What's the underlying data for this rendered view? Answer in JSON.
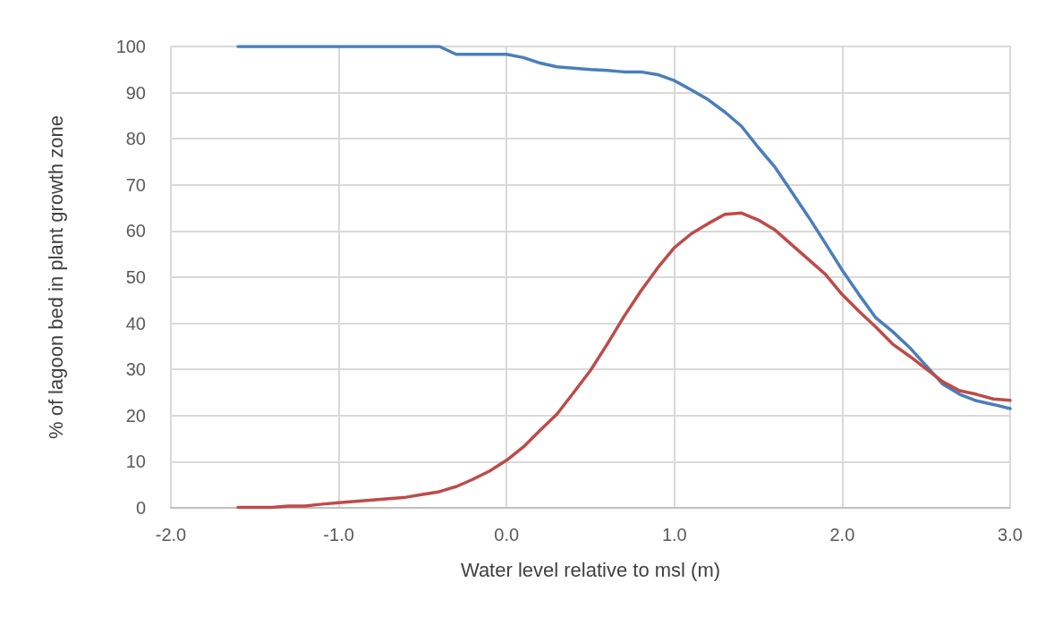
{
  "chart_data": {
    "type": "line",
    "xlabel": "Water level relative to msl (m)",
    "ylabel": "% of lagoon bed in plant growth zone",
    "x": [
      -1.6,
      -1.5,
      -1.4,
      -1.3,
      -1.2,
      -1.1,
      -1.0,
      -0.9,
      -0.8,
      -0.7,
      -0.6,
      -0.5,
      -0.4,
      -0.3,
      -0.2,
      -0.1,
      0.0,
      0.1,
      0.2,
      0.3,
      0.4,
      0.5,
      0.6,
      0.7,
      0.8,
      0.9,
      1.0,
      1.1,
      1.2,
      1.3,
      1.4,
      1.5,
      1.6,
      1.7,
      1.8,
      1.9,
      2.0,
      2.1,
      2.2,
      2.3,
      2.4,
      2.5,
      2.6,
      2.7,
      2.8,
      2.9,
      3.0
    ],
    "series": [
      {
        "color": "#4a7ebb",
        "values": [
          100,
          100,
          100,
          100,
          100,
          100,
          100,
          100,
          100,
          100,
          100,
          100,
          100,
          98.3,
          98.3,
          98.3,
          98.3,
          97.6,
          96.4,
          95.6,
          95.3,
          95.0,
          94.8,
          94.5,
          94.5,
          93.9,
          92.6,
          90.6,
          88.5,
          85.8,
          82.7,
          78.1,
          73.8,
          68.4,
          63.0,
          57.3,
          51.5,
          46.2,
          41.2,
          38.2,
          34.8,
          30.8,
          26.8,
          24.6,
          23.2,
          22.4,
          21.5
        ]
      },
      {
        "color": "#be4b48",
        "values": [
          0.1,
          0.1,
          0.1,
          0.4,
          0.4,
          0.8,
          1.1,
          1.4,
          1.7,
          2.0,
          2.3,
          2.9,
          3.5,
          4.6,
          6.2,
          8.0,
          10.3,
          13.2,
          16.8,
          20.3,
          25.0,
          29.8,
          35.5,
          41.5,
          47.0,
          52.0,
          56.4,
          59.4,
          61.6,
          63.6,
          63.9,
          62.4,
          60.2,
          57.0,
          53.8,
          50.6,
          46.2,
          42.6,
          39.2,
          35.5,
          32.9,
          30.1,
          27.3,
          25.4,
          24.6,
          23.6,
          23.3
        ]
      }
    ],
    "xlim": [
      -2,
      3
    ],
    "xticks": [
      {
        "value": -2,
        "label": "-2.0"
      },
      {
        "value": -1,
        "label": "-1.0"
      },
      {
        "value": 0,
        "label": "0.0"
      },
      {
        "value": 1,
        "label": "1.0"
      },
      {
        "value": 2,
        "label": "2.0"
      },
      {
        "value": 3,
        "label": "3.0"
      }
    ],
    "ylim": [
      0,
      100
    ],
    "yticks": [
      0,
      10,
      20,
      30,
      40,
      50,
      60,
      70,
      80,
      90,
      100
    ],
    "grid": true,
    "marker": "none",
    "line_style": "solid"
  }
}
